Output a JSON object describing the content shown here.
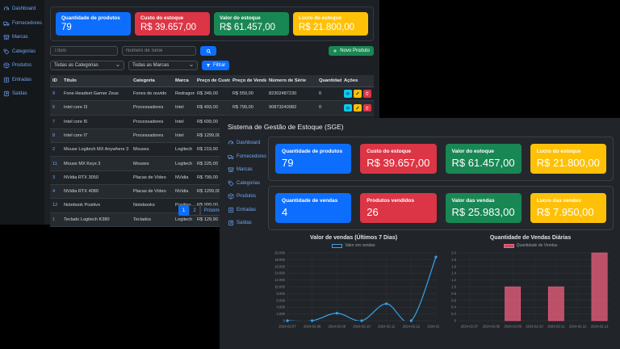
{
  "app": {
    "title": "Sistema de Gestão de Estoque (SGE)"
  },
  "sidebar": {
    "items": [
      {
        "label": "Dashboard",
        "icon": "speedometer-icon"
      },
      {
        "label": "Fornecedores",
        "icon": "truck-icon"
      },
      {
        "label": "Marcas",
        "icon": "shop-icon"
      },
      {
        "label": "Categorias",
        "icon": "tags-icon"
      },
      {
        "label": "Produtos",
        "icon": "box-icon"
      },
      {
        "label": "Entradas",
        "icon": "box-arrow-in-icon"
      },
      {
        "label": "Saídas",
        "icon": "box-arrow-out-icon"
      }
    ]
  },
  "window1": {
    "stats": [
      {
        "label": "Quantidade de produtos",
        "value": "79",
        "color": "#0d6efd"
      },
      {
        "label": "Custo do estoque",
        "value": "R$ 39.657,00",
        "color": "#dc3545"
      },
      {
        "label": "Valor do estoque",
        "value": "R$ 61.457,00",
        "color": "#198754"
      },
      {
        "label": "Lucro do estoque",
        "value": "R$ 21.800,00",
        "color": "#ffc107"
      }
    ],
    "new_product_button": "Novo Produto",
    "filters": {
      "title_placeholder": "Título",
      "serial_placeholder": "Número de Série",
      "category_select": "Todas as Categorias",
      "brand_select": "Todas as Marcas",
      "filter_button": "Filtrar"
    },
    "table": {
      "headers": [
        "ID",
        "Título",
        "Categoria",
        "Marca",
        "Preço de Custo",
        "Preço de Venda",
        "Número de Série",
        "Quantidade",
        "Ações"
      ],
      "rows": [
        {
          "id": "9",
          "title": "Fone Headset Gamer Zeus",
          "category": "Fones de ouvido",
          "brand": "Redragon",
          "cost": "R$ 349,00",
          "price": "R$ 559,00",
          "serial": "82302487230",
          "qty": "0"
        },
        {
          "id": "6",
          "title": "Intel core I3",
          "category": "Processadores",
          "brand": "Intel",
          "cost": "R$ 493,00",
          "price": "R$ 799,00",
          "serial": "90873240982",
          "qty": "0"
        },
        {
          "id": "7",
          "title": "Intel core I5",
          "category": "Processadores",
          "brand": "Intel",
          "cost": "R$ 699,00",
          "price": "R$ 999,00",
          "serial": "7827928347923",
          "qty": "0"
        },
        {
          "id": "8",
          "title": "Intel core I7",
          "category": "Processadores",
          "brand": "Intel",
          "cost": "R$ 1299,00",
          "price": "",
          "serial": "",
          "qty": ""
        },
        {
          "id": "2",
          "title": "Mouse Logitech MX Anywhere 3",
          "category": "Mouses",
          "brand": "Logitech",
          "cost": "R$ 219,90",
          "price": "",
          "serial": "",
          "qty": ""
        },
        {
          "id": "11",
          "title": "Mouse MX Keys 3",
          "category": "Mouses",
          "brand": "Logitech",
          "cost": "R$ 225,00",
          "price": "",
          "serial": "",
          "qty": ""
        },
        {
          "id": "3",
          "title": "NVidia RTX 3050",
          "category": "Placas de Vídeo",
          "brand": "NVidia",
          "cost": "R$ 799,00",
          "price": "",
          "serial": "",
          "qty": ""
        },
        {
          "id": "4",
          "title": "NVidia RTX 4080",
          "category": "Placas de Vídeo",
          "brand": "NVidia",
          "cost": "R$ 1299,00",
          "price": "",
          "serial": "",
          "qty": ""
        },
        {
          "id": "12",
          "title": "Notebook Positivo",
          "category": "Notebooks",
          "brand": "Positivo",
          "cost": "R$ 999,00",
          "price": "",
          "serial": "",
          "qty": ""
        },
        {
          "id": "1",
          "title": "Teclado Logitech K380",
          "category": "Teclados",
          "brand": "Logitech",
          "cost": "R$ 129,90",
          "price": "",
          "serial": "",
          "qty": ""
        }
      ]
    },
    "pagination": [
      {
        "label": "1",
        "active": true
      },
      {
        "label": "2",
        "active": false
      },
      {
        "label": "Próximo",
        "active": false
      }
    ]
  },
  "window2": {
    "title": "Sistema de Gestão de Estoque (SGE)",
    "stats_row1": [
      {
        "label": "Quantidade de produtos",
        "value": "79",
        "color": "#0d6efd"
      },
      {
        "label": "Custo do estoque",
        "value": "R$ 39.657,00",
        "color": "#dc3545"
      },
      {
        "label": "Valor do estoque",
        "value": "R$ 61.457,00",
        "color": "#198754"
      },
      {
        "label": "Lucro do estoque",
        "value": "R$ 21.800,00",
        "color": "#ffc107"
      }
    ],
    "stats_row2": [
      {
        "label": "Quantidade de vendas",
        "value": "4",
        "color": "#0d6efd"
      },
      {
        "label": "Produtos vendidos",
        "value": "26",
        "color": "#dc3545"
      },
      {
        "label": "Valor das vendas",
        "value": "R$ 25.983,00",
        "color": "#198754"
      },
      {
        "label": "Lucro das vendas",
        "value": "R$ 7.950,00",
        "color": "#ffc107"
      }
    ]
  },
  "chart_data": [
    {
      "type": "line",
      "title": "Valor de vendas (Últimos 7 Dias)",
      "legend": "Valor em vendas",
      "color": "#36a2eb",
      "x": [
        "2024-02-07",
        "2024-02-08",
        "2024-02-09",
        "2024-02-10",
        "2024-02-11",
        "2024-02-12",
        "2024-02-13"
      ],
      "values": [
        0,
        0,
        2200,
        0,
        5000,
        0,
        18783
      ],
      "ylim": [
        0,
        20000
      ],
      "y_ticks": [
        "20.000",
        "18.000",
        "16.000",
        "14.000",
        "12.000",
        "10.000",
        "8.000",
        "6.000",
        "4.000",
        "2.000",
        "0"
      ],
      "grid": true,
      "legend_position": "top"
    },
    {
      "type": "bar",
      "title": "Quantidade de Vendas Diárias",
      "legend": "Quantidade de Vendas",
      "color": "rgba(255,99,132,0.7)",
      "border_color": "#ff6384",
      "x": [
        "2024-02-07",
        "2024-02-08",
        "2024-02-09",
        "2024-02-10",
        "2024-02-11",
        "2024-02-12",
        "2024-02-13"
      ],
      "values": [
        0,
        0,
        1,
        0,
        1,
        0,
        2
      ],
      "ylim": [
        0,
        2
      ],
      "y_ticks": [
        "2.0",
        "1.8",
        "1.6",
        "1.4",
        "1.2",
        "1.0",
        "0.8",
        "0.6",
        "0.4",
        "0.2",
        "0"
      ],
      "grid": true,
      "legend_position": "top"
    }
  ]
}
